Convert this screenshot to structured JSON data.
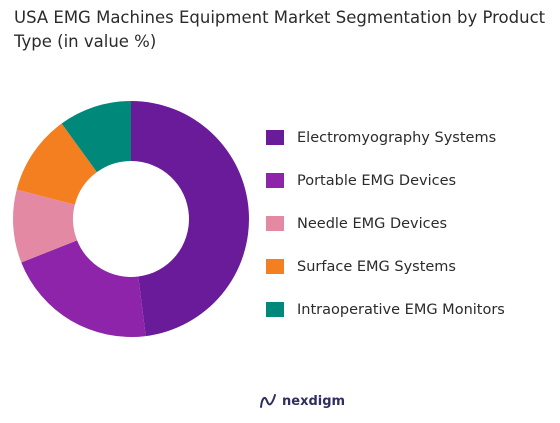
{
  "chart_data": {
    "type": "pie",
    "variant": "donut",
    "title": "USA EMG Machines Equipment Market  Segmentation by Product Type  (in value %)",
    "categories": [
      "Electromyography Systems",
      "Portable EMG Devices",
      "Needle EMG Devices",
      "Surface EMG Systems",
      "Intraoperative EMG Monitors"
    ],
    "values": [
      48,
      21,
      10,
      11,
      10
    ],
    "colors": [
      "#6a1b9a",
      "#8e24aa",
      "#e389a4",
      "#f47f20",
      "#00897b"
    ],
    "legend_position": "right"
  },
  "footer": {
    "brand": "nexdigm",
    "icon": "nexdigm-logo-icon"
  }
}
